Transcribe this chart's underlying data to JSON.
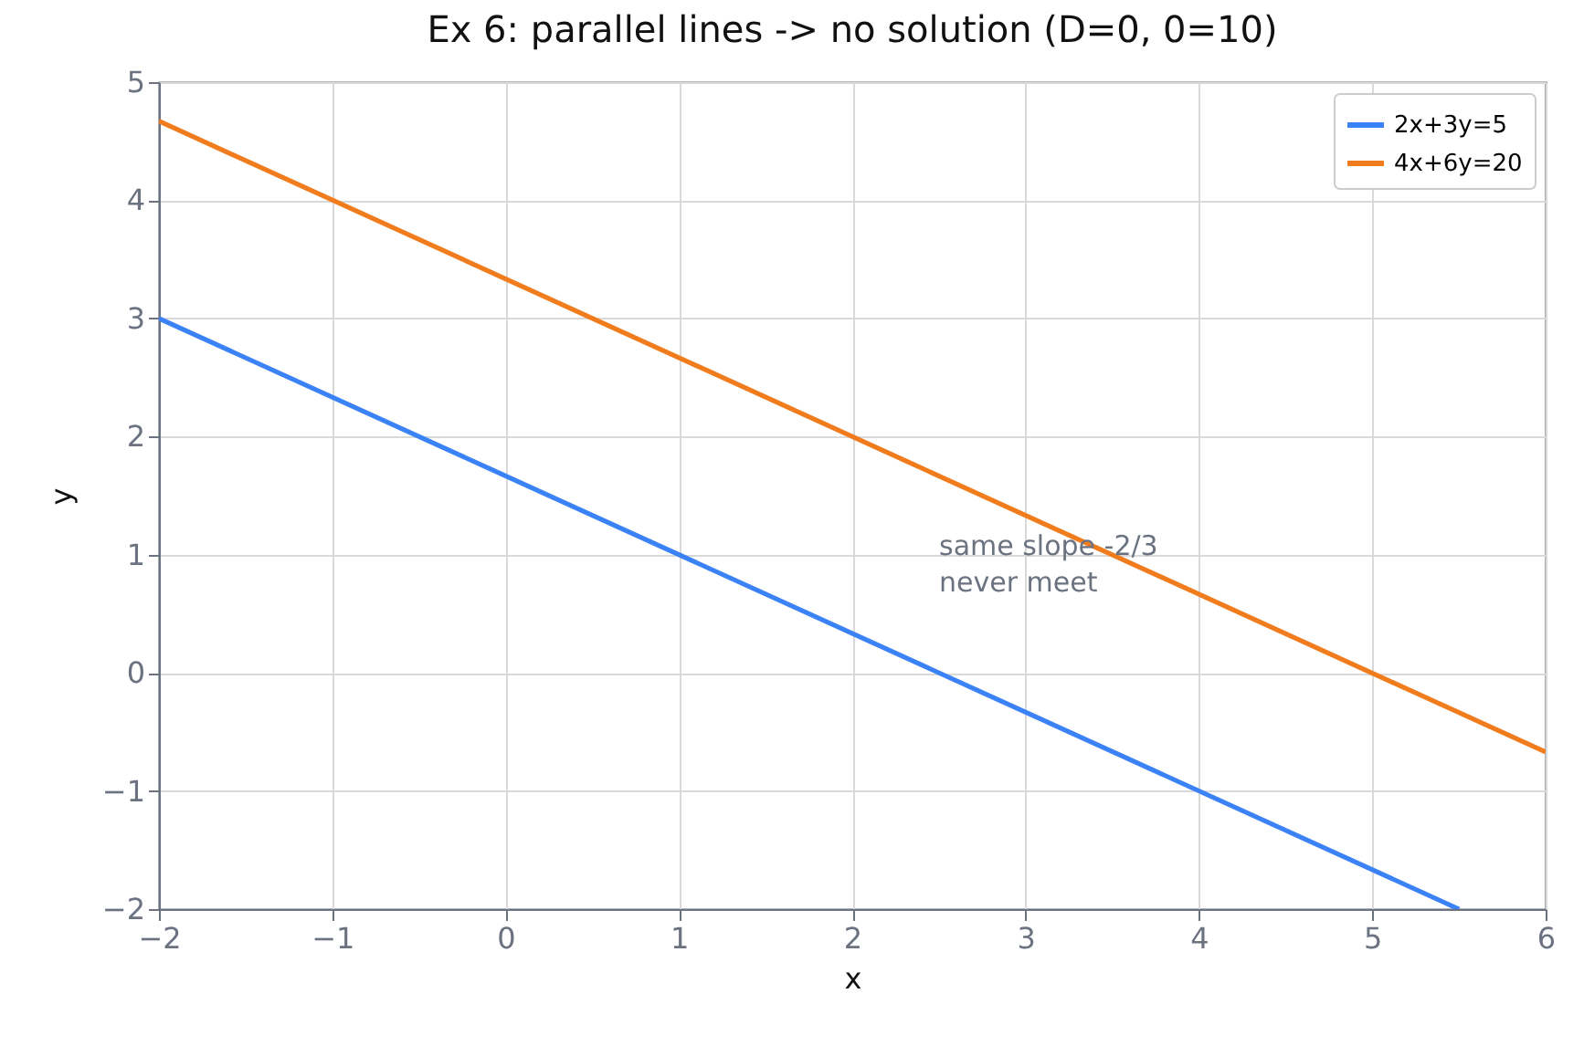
{
  "chart_data": {
    "type": "line",
    "title": "Ex 6: parallel lines -> no solution (D=0, 0=10)",
    "xlabel": "x",
    "ylabel": "y",
    "series": [
      {
        "name": "2x+3y=5",
        "color": "#3b82f6",
        "x": [
          -2,
          5.5
        ],
        "values": [
          3,
          -2
        ]
      },
      {
        "name": "4x+6y=20",
        "color": "#f07c1e",
        "x": [
          -2,
          6
        ],
        "values": [
          4.67,
          -0.67
        ]
      }
    ],
    "annotations": [
      "same slope -2/3\nnever meet"
    ],
    "xlim": [
      -2,
      6
    ],
    "ylim": [
      -2,
      5
    ],
    "xticks": [
      -2,
      -1,
      0,
      1,
      2,
      3,
      4,
      5,
      6
    ],
    "yticks": [
      -2,
      -1,
      0,
      1,
      2,
      3,
      4,
      5
    ],
    "grid": true,
    "legend": "top right",
    "marker": "none",
    "line_style": "solid"
  }
}
